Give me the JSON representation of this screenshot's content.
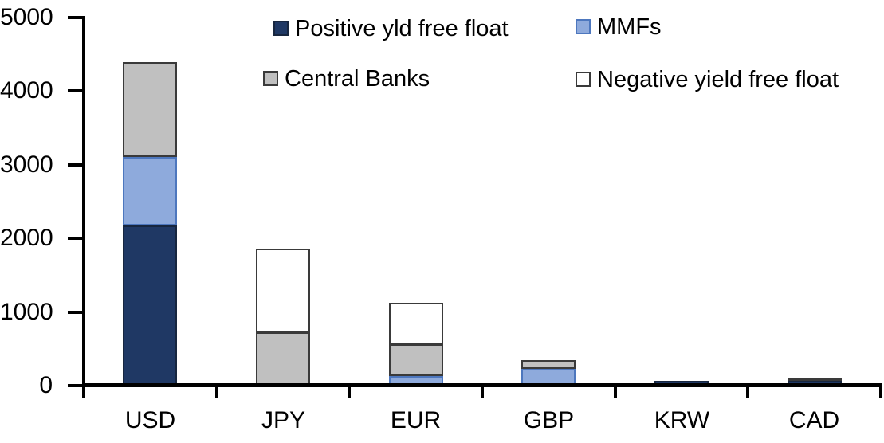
{
  "chart_data": {
    "type": "bar",
    "stacked": true,
    "title": "",
    "xlabel": "",
    "ylabel": "",
    "categories": [
      "USD",
      "JPY",
      "EUR",
      "GBP",
      "KRW",
      "CAD"
    ],
    "series": [
      {
        "name": "Positive yld free float",
        "color": "#1F3864",
        "border": "#17263F",
        "values": [
          2180,
          0,
          0,
          0,
          70,
          60
        ]
      },
      {
        "name": "MMFs",
        "color": "#8EAADC",
        "border": "#4D77BE",
        "values": [
          930,
          0,
          130,
          230,
          0,
          0
        ]
      },
      {
        "name": "Central Banks",
        "color": "#C0C0C0",
        "border": "#3A3A3A",
        "values": [
          1280,
          730,
          430,
          120,
          0,
          45
        ]
      },
      {
        "name": "Negative yield free float",
        "color": "#FFFFFF",
        "border": "#3A3A3A",
        "values": [
          0,
          1130,
          570,
          0,
          0,
          0
        ]
      }
    ],
    "totals": [
      4390,
      1860,
      1130,
      350,
      70,
      105
    ],
    "ylim": [
      0,
      5000
    ],
    "yticks": [
      0,
      1000,
      2000,
      3000,
      4000,
      5000
    ],
    "grid": false,
    "legend_position": "top-inside",
    "axis_color": "#000000",
    "background": "#FFFFFF"
  }
}
